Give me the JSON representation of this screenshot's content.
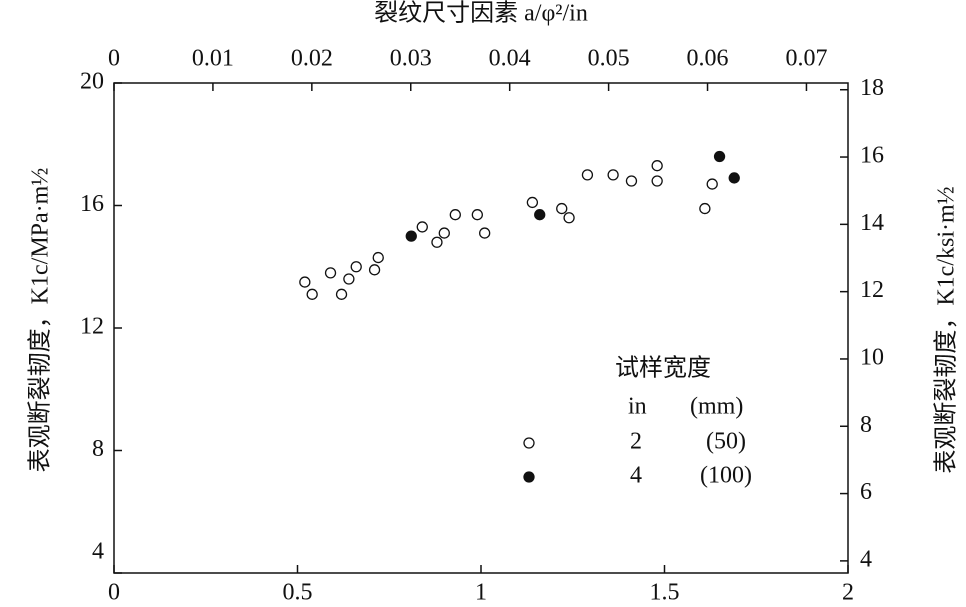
{
  "chart_data": {
    "type": "scatter",
    "title": "裂纹尺寸因素 a/φ²/in",
    "ylabel": "表观断裂韧度，K1c/MPa·m½",
    "y2label": "表观断裂韧度，K1c/ksi·m½",
    "xlim": [
      0,
      2
    ],
    "xticks": [
      0,
      0.5,
      1,
      1.5,
      2
    ],
    "x2lim": [
      0,
      0.0742
    ],
    "x2ticks": [
      0,
      0.01,
      0.02,
      0.03,
      0.04,
      0.05,
      0.06,
      0.07
    ],
    "ylim": [
      4,
      20
    ],
    "yticks": [
      4,
      8,
      12,
      16,
      20
    ],
    "y2lim": [
      3.64,
      18.2
    ],
    "y2ticks": [
      4,
      6,
      8,
      10,
      12,
      14,
      16,
      18
    ],
    "legend": {
      "title": "试样宽度",
      "header": [
        "in",
        "(mm)"
      ]
    },
    "series": [
      {
        "name": "2",
        "width_mm": "(50)",
        "color": "#ffffff",
        "x": [
          0.52,
          0.54,
          0.59,
          0.62,
          0.64,
          0.66,
          0.71,
          0.72,
          0.84,
          0.88,
          0.9,
          0.93,
          0.99,
          1.01,
          1.14,
          1.22,
          1.24,
          1.29,
          1.36,
          1.41,
          1.48,
          1.48,
          1.61,
          1.63
        ],
        "values": [
          13.5,
          13.1,
          13.8,
          13.1,
          13.6,
          14.0,
          13.9,
          14.3,
          15.3,
          14.8,
          15.1,
          15.7,
          15.7,
          15.1,
          16.1,
          15.9,
          15.6,
          17.0,
          17.0,
          16.8,
          17.3,
          16.8,
          15.9,
          16.7
        ]
      },
      {
        "name": "4",
        "width_mm": "(100)",
        "color": "#111111",
        "x": [
          0.81,
          1.16,
          1.65,
          1.69
        ],
        "values": [
          15.0,
          15.7,
          17.6,
          16.9
        ]
      }
    ]
  }
}
